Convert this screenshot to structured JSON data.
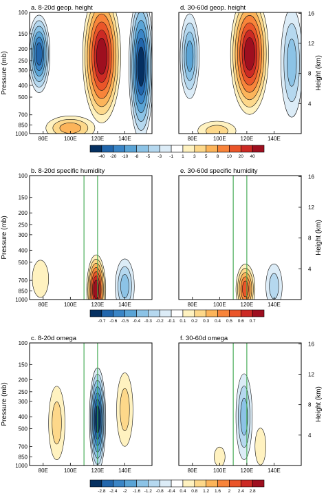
{
  "chart_data": {
    "type": "heatmap",
    "shared": {
      "x_ticks": [
        "80E",
        "100E",
        "120E",
        "140E"
      ],
      "x_range_deg": [
        70,
        160
      ],
      "pressure_ticks": [
        "100",
        "150",
        "200",
        "250",
        "300",
        "400",
        "500",
        "700",
        "850",
        "1000"
      ],
      "ylabel_left": "Pressure (mb)",
      "height_ticks": [
        "4",
        "8",
        "12",
        "16"
      ],
      "ylabel_right": "Height (km)",
      "green_lines_lon": [
        110,
        120
      ]
    },
    "rows": [
      {
        "colorbar_labels": [
          "-40",
          "-20",
          "-10",
          "-8",
          "-5",
          "-3",
          "-1",
          "1",
          "3",
          "5",
          "8",
          "10",
          "20",
          "40"
        ],
        "panels": [
          {
            "title": "a. 8-20d geop. height",
            "show_height_axis": false,
            "green_lines": false,
            "features": [
              {
                "lon": 77,
                "p": 220,
                "rlon": 8,
                "rdec": 0.32,
                "value": -20
              },
              {
                "lon": 123,
                "p": 230,
                "rlon": 14,
                "rdec": 0.55,
                "value": 40
              },
              {
                "lon": 152,
                "p": 280,
                "rlon": 9,
                "rdec": 0.6,
                "value": -40
              },
              {
                "lon": 100,
                "p": 900,
                "rlon": 18,
                "rdec": 0.1,
                "value": 5
              }
            ]
          },
          {
            "title": "d. 30-60d geop. height",
            "show_height_axis": true,
            "green_lines": false,
            "features": [
              {
                "lon": 122,
                "p": 220,
                "rlon": 14,
                "rdec": 0.5,
                "value": 40
              },
              {
                "lon": 78,
                "p": 230,
                "rlon": 7,
                "rdec": 0.35,
                "value": -8
              },
              {
                "lon": 153,
                "p": 260,
                "rlon": 8,
                "rdec": 0.45,
                "value": -5
              },
              {
                "lon": 98,
                "p": 950,
                "rlon": 14,
                "rdec": 0.08,
                "value": 3
              }
            ]
          }
        ]
      },
      {
        "colorbar_labels": [
          "-0.7",
          "-0.6",
          "-0.5",
          "-0.4",
          "-0.3",
          "-0.2",
          "-0.1",
          "0.1",
          "0.2",
          "0.3",
          "0.4",
          "0.5",
          "0.6",
          "0.7"
        ],
        "panels": [
          {
            "title": "b. 8-20d specific humidity",
            "show_height_axis": false,
            "green_lines": true,
            "features": [
              {
                "lon": 119,
                "p": 830,
                "rlon": 7,
                "rdec": 0.28,
                "value": 0.7
              },
              {
                "lon": 140,
                "p": 780,
                "rlon": 7,
                "rdec": 0.22,
                "value": -0.3
              },
              {
                "lon": 78,
                "p": 680,
                "rlon": 6,
                "rdec": 0.15,
                "value": 0.1
              }
            ]
          },
          {
            "title": "e. 30-60d specific humidity",
            "show_height_axis": true,
            "green_lines": true,
            "features": [
              {
                "lon": 119,
                "p": 820,
                "rlon": 7,
                "rdec": 0.2,
                "value": 0.5
              },
              {
                "lon": 140,
                "p": 780,
                "rlon": 6,
                "rdec": 0.18,
                "value": -0.2
              }
            ]
          }
        ]
      },
      {
        "colorbar_labels": [
          "-2.8",
          "-2.4",
          "-2",
          "-1.6",
          "-1.2",
          "-0.8",
          "-0.4",
          "0.4",
          "0.8",
          "1.2",
          "1.6",
          "2",
          "2.4",
          "2.8"
        ],
        "panels": [
          {
            "title": "c. 8-20d omega",
            "show_height_axis": false,
            "green_lines": true,
            "features": [
              {
                "lon": 120,
                "p": 420,
                "rlon": 6,
                "rdec": 0.42,
                "value": -2.8
              },
              {
                "lon": 90,
                "p": 450,
                "rlon": 6,
                "rdec": 0.3,
                "value": 0.8
              },
              {
                "lon": 140,
                "p": 350,
                "rlon": 6,
                "rdec": 0.3,
                "value": 0.8
              }
            ]
          },
          {
            "title": "f. 30-60d omega",
            "show_height_axis": true,
            "green_lines": true,
            "features": [
              {
                "lon": 118,
                "p": 400,
                "rlon": 6,
                "rdec": 0.35,
                "value": -1.2
              },
              {
                "lon": 130,
                "p": 700,
                "rlon": 4,
                "rdec": 0.15,
                "value": 0.4
              },
              {
                "lon": 100,
                "p": 850,
                "rlon": 4,
                "rdec": 0.08,
                "value": 0.4
              }
            ]
          }
        ]
      }
    ],
    "colors": [
      "#053061",
      "#2166ac",
      "#3a85c6",
      "#5aa4d6",
      "#8cc3e6",
      "#b5d8ef",
      "#dcecf7",
      "#ffffff",
      "#fff2c0",
      "#fdd88a",
      "#fcb45a",
      "#f8843a",
      "#ea5529",
      "#cc2a24",
      "#9e0f1f"
    ]
  }
}
